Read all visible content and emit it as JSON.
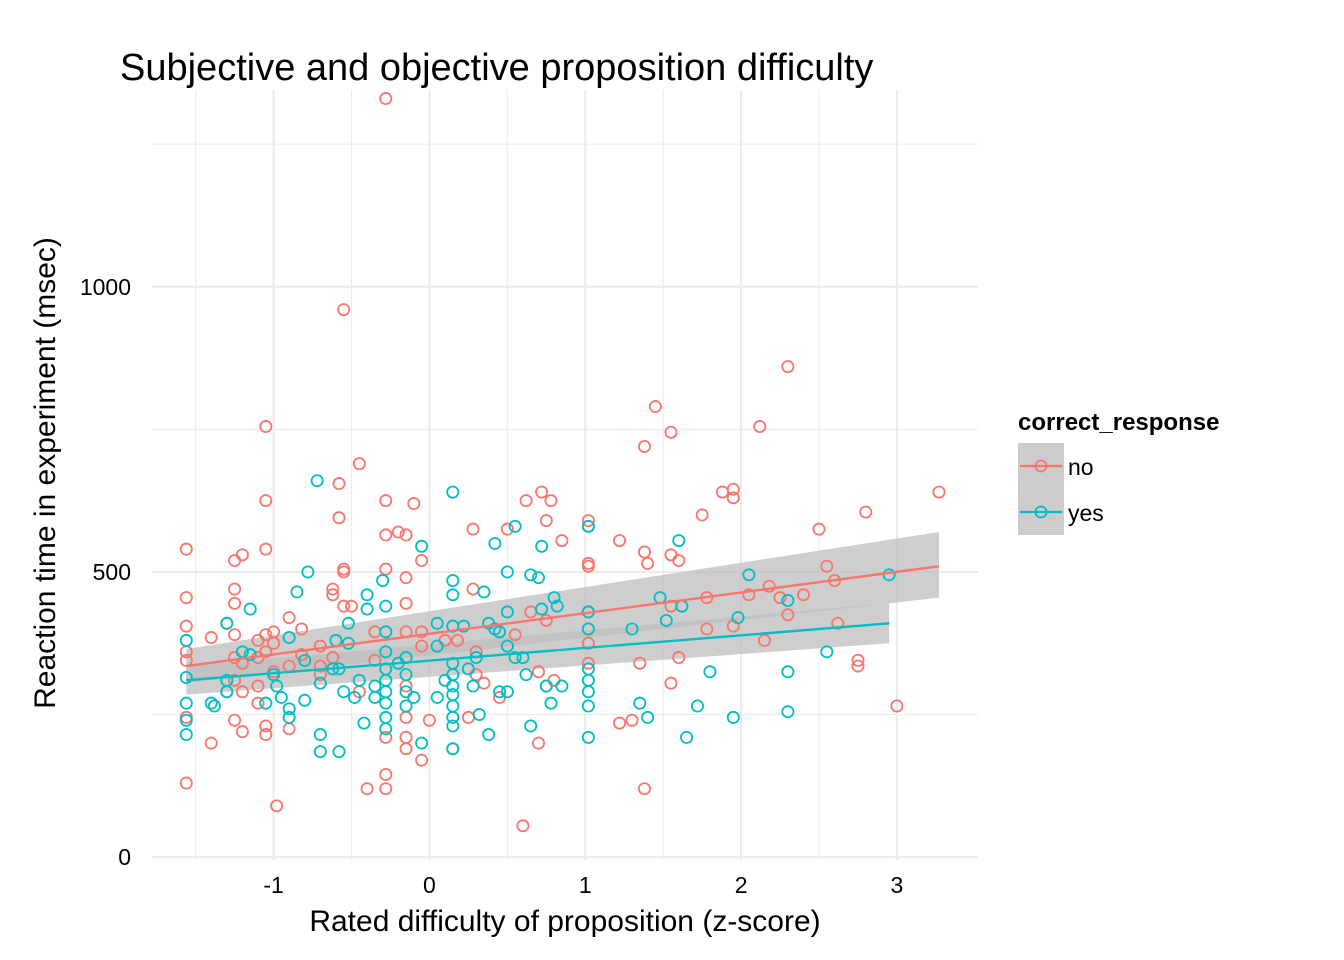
{
  "chart_data": {
    "type": "scatter",
    "title": "Subjective and objective proposition difficulty",
    "xlabel": "Rated difficulty of proposition (z-score)",
    "ylabel": "Reaction time in experiment (msec)",
    "xlim": [
      -1.78,
      3.52
    ],
    "ylim": [
      -5,
      1345
    ],
    "x_ticks": [
      -1,
      0,
      1,
      2,
      3
    ],
    "x_tick_labels": [
      "-1",
      "0",
      "1",
      "2",
      "3"
    ],
    "y_ticks": [
      0,
      500,
      1000
    ],
    "y_tick_labels": [
      "0",
      "500",
      "1000"
    ],
    "grid": true,
    "legend": {
      "title": "correct_response",
      "position": "right",
      "entries": [
        "no",
        "yes"
      ]
    },
    "colors": {
      "no": "#F8766D",
      "yes": "#00BFC4",
      "ribbon": "#BEBEBE",
      "grid": "#EBEBEB"
    },
    "series": [
      {
        "name": "no",
        "points": [
          [
            -1.56,
            540
          ],
          [
            -1.56,
            455
          ],
          [
            -1.56,
            405
          ],
          [
            -1.56,
            360
          ],
          [
            -1.56,
            345
          ],
          [
            -1.56,
            130
          ],
          [
            -1.56,
            245
          ],
          [
            -1.4,
            385
          ],
          [
            -1.4,
            200
          ],
          [
            -1.3,
            410
          ],
          [
            -1.3,
            290
          ],
          [
            -1.25,
            520
          ],
          [
            -1.25,
            470
          ],
          [
            -1.25,
            445
          ],
          [
            -1.25,
            390
          ],
          [
            -1.25,
            350
          ],
          [
            -1.25,
            310
          ],
          [
            -1.25,
            240
          ],
          [
            -1.2,
            530
          ],
          [
            -1.2,
            340
          ],
          [
            -1.2,
            290
          ],
          [
            -1.2,
            220
          ],
          [
            -1.1,
            380
          ],
          [
            -1.1,
            350
          ],
          [
            -1.1,
            300
          ],
          [
            -1.1,
            270
          ],
          [
            -1.05,
            755
          ],
          [
            -1.05,
            625
          ],
          [
            -1.05,
            540
          ],
          [
            -1.05,
            390
          ],
          [
            -1.05,
            360
          ],
          [
            -1.05,
            230
          ],
          [
            -1.05,
            215
          ],
          [
            -1.0,
            395
          ],
          [
            -1.0,
            375
          ],
          [
            -1.0,
            325
          ],
          [
            -0.98,
            90
          ],
          [
            -0.9,
            420
          ],
          [
            -0.9,
            335
          ],
          [
            -0.9,
            225
          ],
          [
            -0.82,
            400
          ],
          [
            -0.82,
            355
          ],
          [
            -0.7,
            370
          ],
          [
            -0.7,
            335
          ],
          [
            -0.7,
            320
          ],
          [
            -0.62,
            470
          ],
          [
            -0.62,
            460
          ],
          [
            -0.62,
            350
          ],
          [
            -0.58,
            655
          ],
          [
            -0.58,
            595
          ],
          [
            -0.55,
            960
          ],
          [
            -0.55,
            505
          ],
          [
            -0.55,
            500
          ],
          [
            -0.55,
            440
          ],
          [
            -0.5,
            440
          ],
          [
            -0.45,
            690
          ],
          [
            -0.45,
            290
          ],
          [
            -0.4,
            120
          ],
          [
            -0.35,
            395
          ],
          [
            -0.35,
            345
          ],
          [
            -0.28,
            1330
          ],
          [
            -0.28,
            625
          ],
          [
            -0.28,
            565
          ],
          [
            -0.28,
            505
          ],
          [
            -0.28,
            210
          ],
          [
            -0.28,
            145
          ],
          [
            -0.28,
            120
          ],
          [
            -0.2,
            570
          ],
          [
            -0.15,
            565
          ],
          [
            -0.15,
            490
          ],
          [
            -0.15,
            445
          ],
          [
            -0.15,
            395
          ],
          [
            -0.15,
            300
          ],
          [
            -0.15,
            245
          ],
          [
            -0.15,
            210
          ],
          [
            -0.15,
            190
          ],
          [
            -0.1,
            620
          ],
          [
            -0.05,
            520
          ],
          [
            -0.05,
            395
          ],
          [
            -0.05,
            370
          ],
          [
            -0.05,
            170
          ],
          [
            0.0,
            240
          ],
          [
            0.1,
            380
          ],
          [
            0.15,
            190
          ],
          [
            0.18,
            380
          ],
          [
            0.25,
            245
          ],
          [
            0.28,
            575
          ],
          [
            0.28,
            470
          ],
          [
            0.3,
            360
          ],
          [
            0.3,
            320
          ],
          [
            0.35,
            305
          ],
          [
            0.45,
            395
          ],
          [
            0.45,
            280
          ],
          [
            0.5,
            575
          ],
          [
            0.55,
            390
          ],
          [
            0.6,
            55
          ],
          [
            0.62,
            625
          ],
          [
            0.65,
            430
          ],
          [
            0.7,
            325
          ],
          [
            0.7,
            200
          ],
          [
            0.72,
            640
          ],
          [
            0.75,
            590
          ],
          [
            0.75,
            415
          ],
          [
            0.75,
            300
          ],
          [
            0.78,
            625
          ],
          [
            0.8,
            310
          ],
          [
            0.85,
            555
          ],
          [
            1.02,
            590
          ],
          [
            1.02,
            580
          ],
          [
            1.02,
            515
          ],
          [
            1.02,
            510
          ],
          [
            1.02,
            430
          ],
          [
            1.02,
            375
          ],
          [
            1.02,
            340
          ],
          [
            1.22,
            555
          ],
          [
            1.22,
            235
          ],
          [
            1.3,
            240
          ],
          [
            1.35,
            340
          ],
          [
            1.38,
            720
          ],
          [
            1.38,
            535
          ],
          [
            1.38,
            120
          ],
          [
            1.4,
            515
          ],
          [
            1.45,
            790
          ],
          [
            1.55,
            745
          ],
          [
            1.55,
            530
          ],
          [
            1.55,
            440
          ],
          [
            1.55,
            305
          ],
          [
            1.6,
            350
          ],
          [
            1.6,
            520
          ],
          [
            1.75,
            600
          ],
          [
            1.78,
            455
          ],
          [
            1.78,
            400
          ],
          [
            1.88,
            640
          ],
          [
            1.95,
            405
          ],
          [
            1.95,
            645
          ],
          [
            1.95,
            630
          ],
          [
            2.05,
            460
          ],
          [
            2.12,
            755
          ],
          [
            2.15,
            380
          ],
          [
            2.18,
            475
          ],
          [
            2.25,
            455
          ],
          [
            2.3,
            860
          ],
          [
            2.3,
            425
          ],
          [
            2.4,
            460
          ],
          [
            2.5,
            575
          ],
          [
            2.55,
            510
          ],
          [
            2.6,
            485
          ],
          [
            2.62,
            410
          ],
          [
            2.75,
            345
          ],
          [
            2.75,
            335
          ],
          [
            2.8,
            605
          ],
          [
            3.0,
            265
          ],
          [
            3.27,
            640
          ]
        ],
        "fit": {
          "x0": -1.56,
          "y0": 335,
          "x1": 3.27,
          "y1": 510,
          "lo0": 305,
          "hi0": 365,
          "lo1": 455,
          "hi1": 570
        }
      },
      {
        "name": "yes",
        "points": [
          [
            -1.56,
            380
          ],
          [
            -1.56,
            315
          ],
          [
            -1.56,
            270
          ],
          [
            -1.56,
            240
          ],
          [
            -1.56,
            215
          ],
          [
            -1.4,
            270
          ],
          [
            -1.38,
            265
          ],
          [
            -1.3,
            410
          ],
          [
            -1.3,
            310
          ],
          [
            -1.3,
            290
          ],
          [
            -1.2,
            360
          ],
          [
            -1.15,
            435
          ],
          [
            -1.15,
            355
          ],
          [
            -1.05,
            270
          ],
          [
            -1.0,
            320
          ],
          [
            -0.98,
            300
          ],
          [
            -0.95,
            280
          ],
          [
            -0.9,
            260
          ],
          [
            -0.9,
            245
          ],
          [
            -0.9,
            385
          ],
          [
            -0.85,
            465
          ],
          [
            -0.8,
            345
          ],
          [
            -0.8,
            275
          ],
          [
            -0.78,
            500
          ],
          [
            -0.72,
            660
          ],
          [
            -0.7,
            305
          ],
          [
            -0.7,
            215
          ],
          [
            -0.7,
            185
          ],
          [
            -0.62,
            330
          ],
          [
            -0.6,
            380
          ],
          [
            -0.58,
            330
          ],
          [
            -0.58,
            185
          ],
          [
            -0.55,
            290
          ],
          [
            -0.52,
            410
          ],
          [
            -0.52,
            375
          ],
          [
            -0.48,
            280
          ],
          [
            -0.45,
            310
          ],
          [
            -0.42,
            235
          ],
          [
            -0.4,
            460
          ],
          [
            -0.4,
            435
          ],
          [
            -0.35,
            300
          ],
          [
            -0.35,
            280
          ],
          [
            -0.3,
            485
          ],
          [
            -0.28,
            440
          ],
          [
            -0.28,
            395
          ],
          [
            -0.28,
            360
          ],
          [
            -0.28,
            330
          ],
          [
            -0.28,
            310
          ],
          [
            -0.28,
            290
          ],
          [
            -0.28,
            270
          ],
          [
            -0.28,
            245
          ],
          [
            -0.28,
            225
          ],
          [
            -0.2,
            340
          ],
          [
            -0.15,
            350
          ],
          [
            -0.15,
            320
          ],
          [
            -0.15,
            290
          ],
          [
            -0.15,
            265
          ],
          [
            -0.1,
            280
          ],
          [
            -0.05,
            545
          ],
          [
            -0.05,
            200
          ],
          [
            0.05,
            410
          ],
          [
            0.05,
            370
          ],
          [
            0.05,
            280
          ],
          [
            0.1,
            310
          ],
          [
            0.15,
            640
          ],
          [
            0.15,
            485
          ],
          [
            0.15,
            460
          ],
          [
            0.15,
            405
          ],
          [
            0.15,
            340
          ],
          [
            0.15,
            320
          ],
          [
            0.15,
            300
          ],
          [
            0.15,
            285
          ],
          [
            0.15,
            265
          ],
          [
            0.15,
            245
          ],
          [
            0.15,
            230
          ],
          [
            0.15,
            190
          ],
          [
            0.22,
            405
          ],
          [
            0.25,
            330
          ],
          [
            0.28,
            300
          ],
          [
            0.3,
            350
          ],
          [
            0.32,
            250
          ],
          [
            0.35,
            465
          ],
          [
            0.38,
            410
          ],
          [
            0.38,
            215
          ],
          [
            0.42,
            550
          ],
          [
            0.42,
            400
          ],
          [
            0.45,
            395
          ],
          [
            0.45,
            290
          ],
          [
            0.5,
            500
          ],
          [
            0.5,
            430
          ],
          [
            0.5,
            370
          ],
          [
            0.5,
            290
          ],
          [
            0.55,
            580
          ],
          [
            0.55,
            350
          ],
          [
            0.6,
            350
          ],
          [
            0.62,
            320
          ],
          [
            0.65,
            495
          ],
          [
            0.65,
            230
          ],
          [
            0.7,
            490
          ],
          [
            0.72,
            545
          ],
          [
            0.72,
            435
          ],
          [
            0.75,
            300
          ],
          [
            0.78,
            270
          ],
          [
            0.8,
            455
          ],
          [
            0.82,
            440
          ],
          [
            0.85,
            300
          ],
          [
            1.02,
            580
          ],
          [
            1.02,
            430
          ],
          [
            1.02,
            400
          ],
          [
            1.02,
            330
          ],
          [
            1.02,
            310
          ],
          [
            1.02,
            290
          ],
          [
            1.02,
            265
          ],
          [
            1.02,
            210
          ],
          [
            1.3,
            400
          ],
          [
            1.35,
            270
          ],
          [
            1.4,
            245
          ],
          [
            1.48,
            455
          ],
          [
            1.52,
            415
          ],
          [
            1.6,
            555
          ],
          [
            1.62,
            440
          ],
          [
            1.65,
            210
          ],
          [
            1.72,
            265
          ],
          [
            1.8,
            325
          ],
          [
            1.95,
            245
          ],
          [
            1.98,
            420
          ],
          [
            2.05,
            495
          ],
          [
            2.3,
            450
          ],
          [
            2.3,
            325
          ],
          [
            2.3,
            255
          ],
          [
            2.55,
            360
          ],
          [
            2.95,
            495
          ]
        ],
        "fit": {
          "x0": -1.56,
          "y0": 310,
          "x1": 2.95,
          "y1": 410,
          "lo0": 285,
          "hi0": 335,
          "lo1": 375,
          "hi1": 445
        }
      }
    ]
  }
}
